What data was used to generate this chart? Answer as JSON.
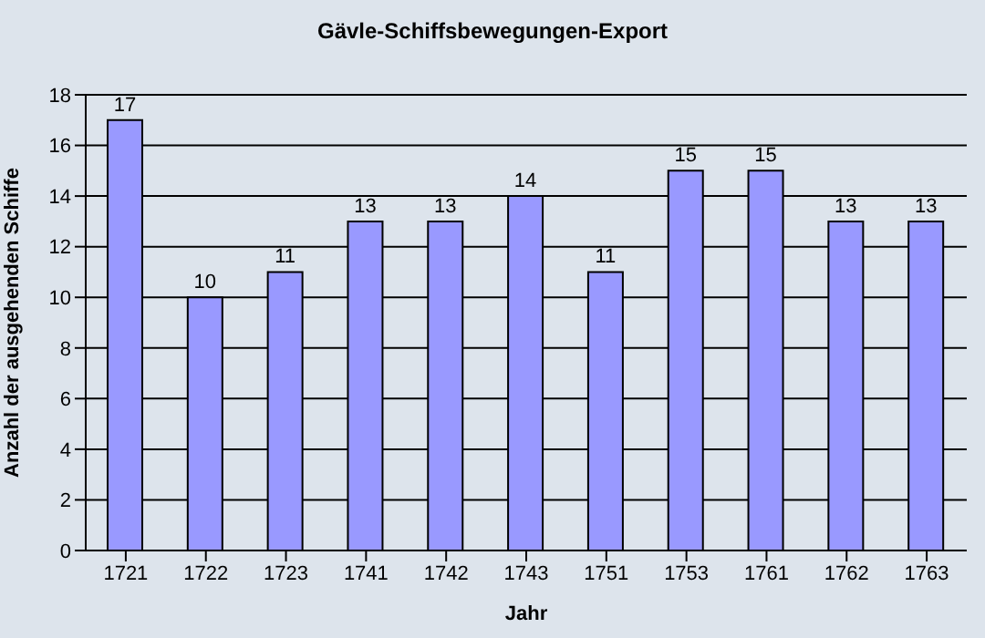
{
  "chart_data": {
    "type": "bar",
    "title": "Gävle-Schiffsbewegungen-Export",
    "xlabel": "Jahr",
    "ylabel": "Anzahl der ausgehenden Schiffe",
    "categories": [
      "1721",
      "1722",
      "1723",
      "1741",
      "1742",
      "1743",
      "1751",
      "1753",
      "1761",
      "1762",
      "1763"
    ],
    "values": [
      17,
      10,
      11,
      13,
      13,
      14,
      11,
      15,
      15,
      13,
      13
    ],
    "color": "#9999ff",
    "ylim": [
      0,
      18
    ],
    "yticks": [
      0,
      2,
      4,
      6,
      8,
      10,
      12,
      14,
      16,
      18
    ],
    "grid": "y",
    "data_labels": true
  }
}
